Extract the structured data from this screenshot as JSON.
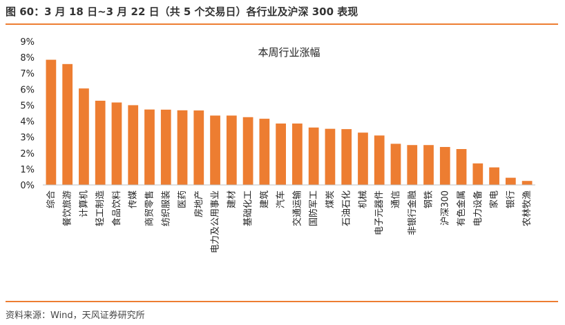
{
  "figure": {
    "title": "图 60：3 月 18 日~3 月 22 日（共 5 个交易日）各行业及沪深 300 表现",
    "source": "资料来源：Wind，天风证券研究所"
  },
  "colors": {
    "bar": "#ED7D31",
    "rule": "#ED7D31",
    "axis": "#bfbfbf"
  },
  "chart_data": {
    "type": "bar",
    "title": "本周行业涨幅",
    "categories": [
      "综合",
      "餐饮旅游",
      "计算机",
      "轻工制造",
      "食品饮料",
      "传媒",
      "商贸零售",
      "纺织服装",
      "医药",
      "房地产",
      "电力及公用事业",
      "建材",
      "基础化工",
      "建筑",
      "汽车",
      "交通运输",
      "国防军工",
      "煤炭",
      "石油石化",
      "机械",
      "电子元器件",
      "通信",
      "非银行金融",
      "钢铁",
      "沪深300",
      "有色金属",
      "电力设备",
      "家电",
      "银行",
      "农林牧渔"
    ],
    "values": [
      7.85,
      7.58,
      6.05,
      5.28,
      5.17,
      5.0,
      4.73,
      4.72,
      4.68,
      4.67,
      4.35,
      4.35,
      4.25,
      4.15,
      3.85,
      3.85,
      3.6,
      3.52,
      3.5,
      3.28,
      3.1,
      2.58,
      2.5,
      2.5,
      2.38,
      2.25,
      1.35,
      1.1,
      0.45,
      0.25
    ],
    "yticks": [
      "0%",
      "1%",
      "2%",
      "3%",
      "4%",
      "5%",
      "6%",
      "7%",
      "8%",
      "9%"
    ],
    "ylim": [
      0,
      9
    ],
    "xlabel": "",
    "ylabel": "",
    "grid": false,
    "legend": "none"
  }
}
